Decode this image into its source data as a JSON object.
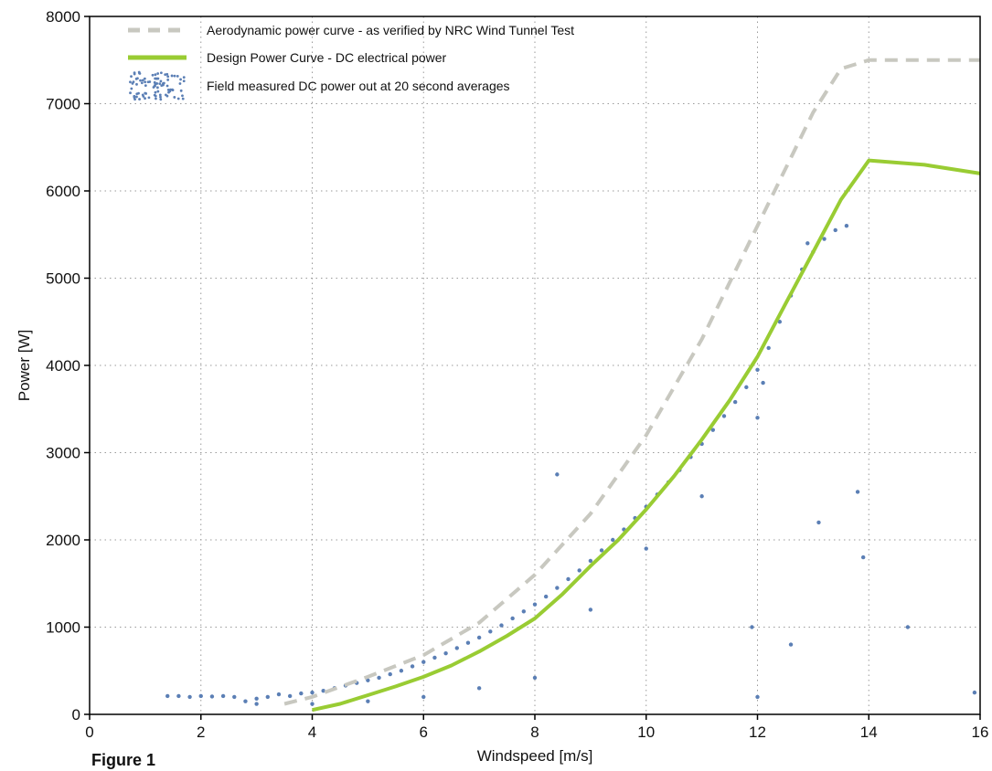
{
  "caption": "Figure 1",
  "chart_data": {
    "type": "scatter",
    "xlabel": "Windspeed [m/s]",
    "ylabel": "Power [W]",
    "xlim": [
      0,
      16
    ],
    "ylim": [
      0,
      8000
    ],
    "x_ticks": [
      0,
      2,
      4,
      6,
      8,
      10,
      12,
      14,
      16
    ],
    "y_ticks": [
      0,
      1000,
      2000,
      3000,
      4000,
      5000,
      6000,
      7000,
      8000
    ],
    "grid": true,
    "legend_position": "top-left",
    "series": [
      {
        "name": "Aerodynamic power curve - as verified by NRC Wind Tunnel Test",
        "kind": "line",
        "style": "dashed",
        "color": "#c8c8c0",
        "x": [
          3.5,
          4,
          5,
          6,
          7,
          8,
          9,
          10,
          11,
          12,
          13,
          13.5,
          14,
          15,
          16
        ],
        "y": [
          120,
          200,
          430,
          680,
          1050,
          1600,
          2300,
          3200,
          4300,
          5600,
          6900,
          7400,
          7500,
          7500,
          7500
        ]
      },
      {
        "name": "Design Power Curve - DC electrical power",
        "kind": "line",
        "style": "solid",
        "color": "#99cc33",
        "x": [
          4,
          4.5,
          5,
          5.5,
          6,
          6.5,
          7,
          7.5,
          8,
          8.5,
          9,
          9.5,
          10,
          10.5,
          11,
          11.5,
          12,
          12.5,
          13,
          13.5,
          14,
          15,
          16
        ],
        "y": [
          50,
          120,
          220,
          320,
          430,
          560,
          720,
          900,
          1100,
          1380,
          1700,
          2000,
          2350,
          2730,
          3150,
          3600,
          4100,
          4700,
          5300,
          5900,
          6350,
          6300,
          6200
        ]
      },
      {
        "name": "Field measured DC power out at 20 second averages",
        "kind": "scatter",
        "color": "#5b7fb5",
        "x": [
          1.4,
          1.6,
          1.8,
          2.0,
          2.2,
          2.4,
          2.6,
          2.8,
          3.0,
          3.2,
          3.4,
          3.6,
          3.8,
          4.0,
          4.2,
          4.4,
          4.6,
          4.8,
          5.0,
          5.2,
          5.4,
          5.6,
          5.8,
          6.0,
          6.2,
          6.4,
          6.6,
          6.8,
          7.0,
          7.2,
          7.4,
          7.6,
          7.8,
          8.0,
          8.2,
          8.4,
          8.6,
          8.8,
          9.0,
          9.2,
          9.4,
          9.6,
          9.8,
          10.0,
          10.2,
          10.4,
          10.6,
          10.8,
          11.0,
          11.2,
          11.4,
          11.6,
          11.8,
          12.0,
          12.2,
          12.4,
          12.6,
          12.8,
          13.0,
          13.2,
          13.4,
          13.6,
          13.8,
          14.7,
          15.9,
          3.0,
          4.0,
          5.0,
          6.0,
          7.0,
          8.0,
          9.0,
          10.0,
          11.0,
          12.0,
          13.1,
          13.9,
          12.0,
          12.6,
          11.9,
          12.1,
          8.4,
          12.9
        ],
        "y": [
          210,
          210,
          200,
          210,
          205,
          210,
          200,
          150,
          180,
          200,
          230,
          210,
          240,
          250,
          270,
          300,
          330,
          360,
          390,
          420,
          460,
          500,
          550,
          600,
          650,
          700,
          760,
          820,
          880,
          950,
          1020,
          1100,
          1180,
          1260,
          1350,
          1450,
          1550,
          1650,
          1760,
          1880,
          2000,
          2120,
          2250,
          2380,
          2520,
          2660,
          2800,
          2950,
          3100,
          3260,
          3420,
          3580,
          3750,
          3950,
          4200,
          4500,
          4800,
          5100,
          5300,
          5450,
          5550,
          5600,
          2550,
          1000,
          250,
          120,
          120,
          150,
          200,
          300,
          420,
          1200,
          1900,
          2500,
          3400,
          2200,
          1800,
          200,
          800,
          1000,
          3800,
          2750,
          5400
        ]
      }
    ]
  }
}
